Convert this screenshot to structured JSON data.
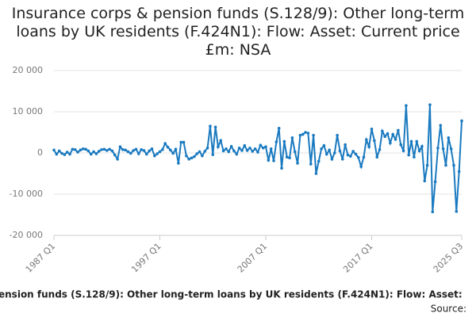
{
  "chart_data": {
    "type": "line",
    "title": "Insurance corps & pension funds (S.128/9): Other long-term loans by UK residents (F.424N1): Flow: Asset: Current price £m: NSA",
    "footer": "ension funds (S.128/9): Other long-term loans by UK residents (F.424N1): Flow: Asset:",
    "source": "Source:",
    "categories": [
      "1987 Q1",
      null,
      null,
      null,
      null,
      null,
      null,
      null,
      null,
      null,
      null,
      null,
      null,
      null,
      null,
      null,
      null,
      null,
      null,
      null,
      null,
      null,
      null,
      null,
      null,
      null,
      null,
      null,
      null,
      null,
      null,
      null,
      null,
      null,
      null,
      null,
      null,
      null,
      null,
      null,
      "1997 Q1",
      null,
      null,
      null,
      null,
      null,
      null,
      null,
      null,
      null,
      null,
      null,
      null,
      null,
      null,
      null,
      null,
      null,
      null,
      null,
      null,
      null,
      null,
      null,
      null,
      null,
      null,
      null,
      null,
      null,
      null,
      null,
      null,
      null,
      null,
      null,
      null,
      null,
      null,
      null,
      "2007 Q1",
      null,
      null,
      null,
      null,
      null,
      null,
      null,
      null,
      null,
      null,
      null,
      null,
      null,
      null,
      null,
      null,
      null,
      null,
      null,
      null,
      null,
      null,
      null,
      null,
      null,
      null,
      null,
      null,
      null,
      null,
      null,
      null,
      null,
      null,
      null,
      null,
      null,
      null,
      null,
      "2017 Q1",
      null,
      null,
      null,
      null,
      null,
      null,
      null,
      null,
      null,
      null,
      null,
      null,
      null,
      null,
      null,
      null,
      null,
      null,
      null,
      null,
      null,
      null,
      null,
      null,
      null,
      null,
      null,
      null,
      null,
      null,
      null,
      null,
      null,
      "2025 Q3"
    ],
    "series": [
      {
        "color": "#1a7ac0",
        "values": [
          700,
          -300,
          500,
          -100,
          -400,
          200,
          -300,
          900,
          800,
          200,
          700,
          1000,
          900,
          500,
          -300,
          300,
          -200,
          400,
          800,
          900,
          600,
          900,
          500,
          -500,
          -1500,
          1500,
          800,
          700,
          300,
          -100,
          600,
          900,
          -200,
          800,
          600,
          -300,
          500,
          1000,
          -700,
          -200,
          300,
          800,
          2300,
          1400,
          700,
          -100,
          900,
          -2500,
          2600,
          2600,
          -700,
          -1500,
          -1200,
          -900,
          -200,
          300,
          -700,
          400,
          1200,
          6500,
          -400,
          6300,
          1500,
          3000,
          500,
          1000,
          300,
          1600,
          500,
          -300,
          1200,
          600,
          1800,
          600,
          1200,
          400,
          1000,
          200,
          1900,
          1200,
          1500,
          -1800,
          1000,
          -1900,
          2700,
          6000,
          -3700,
          2800,
          -1000,
          -1200,
          3700,
          300,
          -2500,
          4300,
          4500,
          5000,
          4800,
          -2700,
          4300,
          -5000,
          -2000,
          1000,
          1800,
          -300,
          700,
          -1500,
          0,
          4300,
          500,
          -1500,
          2000,
          -500,
          -800,
          400,
          -300,
          -1100,
          -3300,
          -1000,
          3200,
          1500,
          5800,
          3000,
          -1000,
          800,
          5300,
          4000,
          4700,
          2400,
          4500,
          3300,
          5500,
          2000,
          500,
          11500,
          -500,
          2800,
          -1000,
          2800,
          500,
          1600,
          -6800,
          -3000,
          11700,
          -14300,
          -7000,
          1200,
          6700,
          1000,
          -3000,
          3700,
          1000,
          -3000,
          -14200,
          -4500,
          7800
        ]
      }
    ],
    "ylim": [
      -20000,
      20000
    ],
    "yticks": [
      {
        "value": -20000,
        "label": "-20 000"
      },
      {
        "value": -10000,
        "label": "-10 000"
      },
      0,
      {
        "value": 10000,
        "label": "10 000"
      },
      {
        "value": 20000,
        "label": "20 000"
      }
    ],
    "grid": true
  }
}
